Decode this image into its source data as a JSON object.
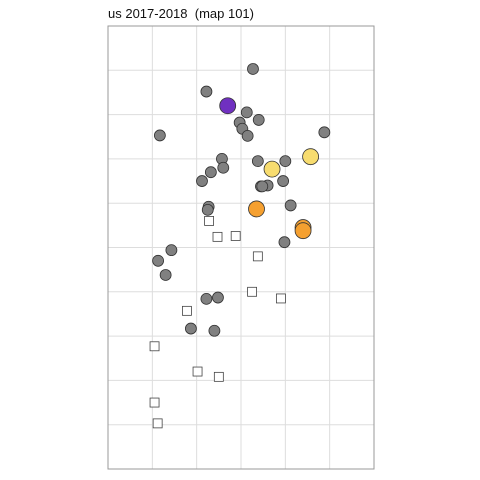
{
  "chart_data": {
    "type": "scatter",
    "title": "us 2017-2018  (map 101)",
    "xlabel": "",
    "ylabel": "",
    "xlim": [
      0,
      6
    ],
    "ylim": [
      0,
      10
    ],
    "grid": true,
    "legend": "none",
    "colors": {
      "grey": "#808080",
      "purple": "#7030c0",
      "yellow": "#f7dc6f",
      "orange": "#f5a030",
      "square_fill": "#ffffff",
      "marker_edge": "#333333"
    },
    "series": [
      {
        "marker": "circle",
        "color": "grey",
        "points": [
          [
            3.27,
            9.03
          ],
          [
            2.22,
            8.52
          ],
          [
            3.13,
            8.05
          ],
          [
            3.4,
            7.88
          ],
          [
            2.97,
            7.82
          ],
          [
            3.03,
            7.68
          ],
          [
            4.88,
            7.6
          ],
          [
            1.17,
            7.53
          ],
          [
            3.15,
            7.52
          ],
          [
            2.57,
            7.0
          ],
          [
            3.38,
            6.95
          ],
          [
            4.0,
            6.95
          ],
          [
            2.6,
            6.8
          ],
          [
            2.32,
            6.7
          ],
          [
            2.12,
            6.5
          ],
          [
            3.95,
            6.5
          ],
          [
            3.6,
            6.4
          ],
          [
            3.45,
            6.38
          ],
          [
            3.48,
            6.38
          ],
          [
            2.27,
            5.92
          ],
          [
            4.12,
            5.95
          ],
          [
            2.25,
            5.85
          ],
          [
            3.38,
            5.87
          ],
          [
            3.98,
            5.12
          ],
          [
            1.43,
            4.94
          ],
          [
            1.13,
            4.7
          ],
          [
            1.3,
            4.38
          ],
          [
            2.48,
            3.87
          ],
          [
            2.22,
            3.84
          ],
          [
            1.87,
            3.17
          ],
          [
            2.4,
            3.12
          ]
        ]
      },
      {
        "marker": "circle",
        "color": "purple",
        "size": "large",
        "points": [
          [
            2.7,
            8.2
          ]
        ]
      },
      {
        "marker": "circle",
        "color": "yellow",
        "size": "large",
        "points": [
          [
            4.57,
            7.05
          ],
          [
            3.7,
            6.77
          ]
        ]
      },
      {
        "marker": "circle",
        "color": "orange",
        "size": "large",
        "points": [
          [
            3.35,
            5.87
          ],
          [
            4.4,
            5.45
          ],
          [
            4.4,
            5.38
          ]
        ]
      },
      {
        "marker": "square",
        "color": "square_fill",
        "points": [
          [
            2.28,
            5.6
          ],
          [
            2.47,
            5.24
          ],
          [
            2.88,
            5.26
          ],
          [
            3.38,
            4.8
          ],
          [
            3.25,
            4.0
          ],
          [
            3.9,
            3.85
          ],
          [
            1.78,
            3.57
          ],
          [
            1.05,
            2.77
          ],
          [
            2.02,
            2.2
          ],
          [
            2.5,
            2.08
          ],
          [
            1.05,
            1.5
          ],
          [
            1.12,
            1.03
          ]
        ]
      }
    ]
  }
}
